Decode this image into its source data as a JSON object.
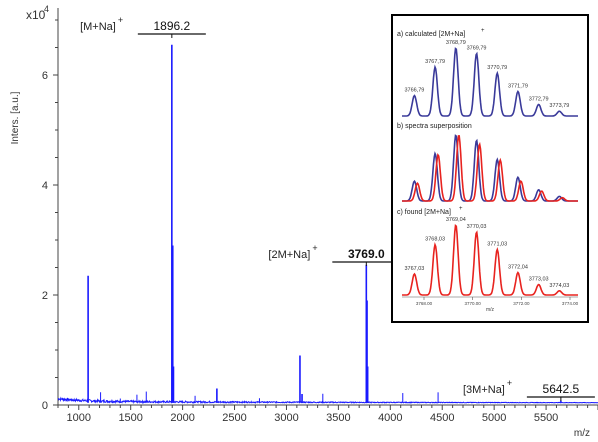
{
  "chart_data": {
    "type": "line",
    "ylabel": "Inters. [a.u.]",
    "y_multiplier": "x10",
    "y_exponent": "4",
    "xlabel": "m/z",
    "xlim": [
      800,
      6000
    ],
    "ylim": [
      0,
      7
    ],
    "x_ticks": [
      1000,
      1500,
      2000,
      2500,
      3000,
      3500,
      4000,
      4500,
      5000,
      5500
    ],
    "y_ticks": [
      0,
      2,
      4,
      6
    ],
    "series_color": "#1a1aff",
    "peaks": [
      {
        "x": 1090,
        "y": 2.35
      },
      {
        "x": 1896.2,
        "y": 6.55
      },
      {
        "x": 1905,
        "y": 2.9
      },
      {
        "x": 1912,
        "y": 0.7
      },
      {
        "x": 2330,
        "y": 0.3
      },
      {
        "x": 3130,
        "y": 0.9
      },
      {
        "x": 3150,
        "y": 0.2
      },
      {
        "x": 3769.0,
        "y": 2.55
      },
      {
        "x": 3776,
        "y": 1.9
      },
      {
        "x": 3782,
        "y": 0.7
      },
      {
        "x": 5642.5,
        "y": 0.08
      }
    ],
    "annotations": [
      {
        "label": "[M+Na]",
        "charge": "+",
        "value": "1896.2",
        "x": 1896.2
      },
      {
        "label": "[2M+Na]",
        "charge": "+",
        "value": "3769.0",
        "x": 3769.0
      },
      {
        "label": "[3M+Na]",
        "charge": "+",
        "value": "5642.5",
        "x": 5642.5
      }
    ],
    "inset": {
      "panels": [
        {
          "title": "a) calculated [2M+Na]",
          "title_sup": "+",
          "colors": [
            "#3a3a9a"
          ],
          "peaks": [
            {
              "label": "3766,79",
              "h": 0.3
            },
            {
              "label": "3767,79",
              "h": 0.72
            },
            {
              "label": "3768,79",
              "h": 1.0
            },
            {
              "label": "3769,79",
              "h": 0.92
            },
            {
              "label": "3770,79",
              "h": 0.63
            },
            {
              "label": "3771,79",
              "h": 0.36
            },
            {
              "label": "3772,79",
              "h": 0.17
            },
            {
              "label": "3773,79",
              "h": 0.07
            }
          ]
        },
        {
          "title": "b) spectra superposition",
          "title_sup": "",
          "colors": [
            "#3a3a9a",
            "#e8231f"
          ],
          "peaks_blue": [
            0.3,
            0.72,
            1.0,
            0.92,
            0.63,
            0.36,
            0.17,
            0.07
          ],
          "peaks_red": [
            0.27,
            0.7,
            1.0,
            0.86,
            0.62,
            0.3,
            0.15,
            0.05
          ]
        },
        {
          "title": "c) found [2M+Na]",
          "title_sup": "+",
          "colors": [
            "#e8231f"
          ],
          "peaks": [
            {
              "label": "3767,03",
              "h": 0.3
            },
            {
              "label": "3768,03",
              "h": 0.72
            },
            {
              "label": "3769,04",
              "h": 1.0
            },
            {
              "label": "3770,03",
              "h": 0.9
            },
            {
              "label": "3771,03",
              "h": 0.65
            },
            {
              "label": "3772,04",
              "h": 0.32
            },
            {
              "label": "3773,03",
              "h": 0.15
            },
            {
              "label": "3774,03",
              "h": 0.06
            }
          ],
          "x_ticks": [
            "3768.00",
            "3770.00",
            "3772.00",
            "3774.00"
          ],
          "xlabel": "m/z"
        }
      ]
    }
  }
}
